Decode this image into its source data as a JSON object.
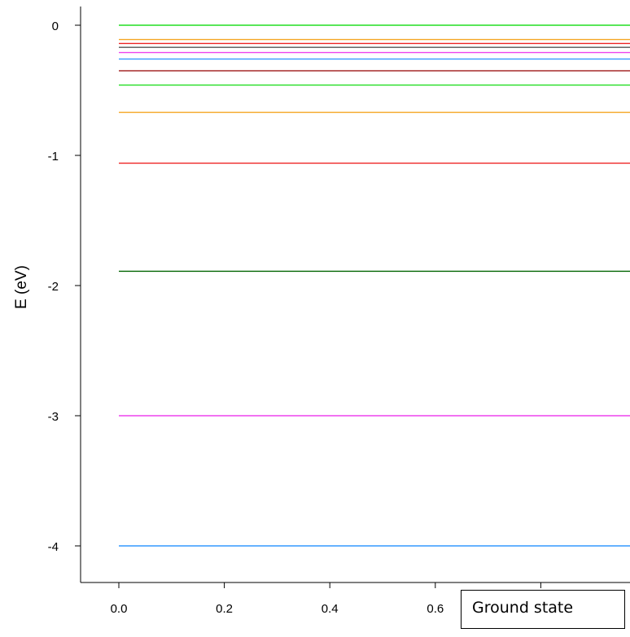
{
  "chart_data": {
    "type": "line",
    "xlabel": "",
    "ylabel": "E (eV)",
    "xlim": [
      0,
      1
    ],
    "ylim": [
      -4.25,
      0.15
    ],
    "x_ticks": [
      {
        "value": 0.0,
        "label": "0.0"
      },
      {
        "value": 0.2,
        "label": "0.2"
      },
      {
        "value": 0.4,
        "label": "0.4"
      },
      {
        "value": 0.6,
        "label": "0.6"
      },
      {
        "value": 0.8,
        "label": ""
      }
    ],
    "y_ticks": [
      {
        "value": 0,
        "label": "0"
      },
      {
        "value": -1,
        "label": "-1"
      },
      {
        "value": -2,
        "label": "-2"
      },
      {
        "value": -3,
        "label": "-3"
      },
      {
        "value": -4,
        "label": "-4"
      }
    ],
    "grid": false,
    "legend": {
      "position": "bottom-right",
      "label": "Ground state"
    },
    "series": [
      {
        "x": [
          0,
          1
        ],
        "y": [
          -4.0,
          -4.0
        ],
        "color": "#3399ff"
      },
      {
        "x": [
          0,
          1
        ],
        "y": [
          -3.0,
          -3.0
        ],
        "color": "#ee44ee"
      },
      {
        "x": [
          0,
          1
        ],
        "y": [
          -1.89,
          -1.89
        ],
        "color": "#006400"
      },
      {
        "x": [
          0,
          1
        ],
        "y": [
          -1.06,
          -1.06
        ],
        "color": "#ee2222"
      },
      {
        "x": [
          0,
          1
        ],
        "y": [
          -0.67,
          -0.67
        ],
        "color": "#f5a623"
      },
      {
        "x": [
          0,
          1
        ],
        "y": [
          -0.46,
          -0.46
        ],
        "color": "#22dd22"
      },
      {
        "x": [
          0,
          1
        ],
        "y": [
          -0.35,
          -0.35
        ],
        "color": "#a52a2a"
      },
      {
        "x": [
          0,
          1
        ],
        "y": [
          -0.26,
          -0.26
        ],
        "color": "#3399ff"
      },
      {
        "x": [
          0,
          1
        ],
        "y": [
          -0.21,
          -0.21
        ],
        "color": "#ee44ee"
      },
      {
        "x": [
          0,
          1
        ],
        "y": [
          -0.17,
          -0.17
        ],
        "color": "#555555"
      },
      {
        "x": [
          0,
          1
        ],
        "y": [
          -0.14,
          -0.14
        ],
        "color": "#ee2222"
      },
      {
        "x": [
          0,
          1
        ],
        "y": [
          -0.11,
          -0.11
        ],
        "color": "#f5a623"
      },
      {
        "x": [
          0,
          1
        ],
        "y": [
          0.0,
          0.0
        ],
        "color": "#22dd22"
      }
    ]
  }
}
